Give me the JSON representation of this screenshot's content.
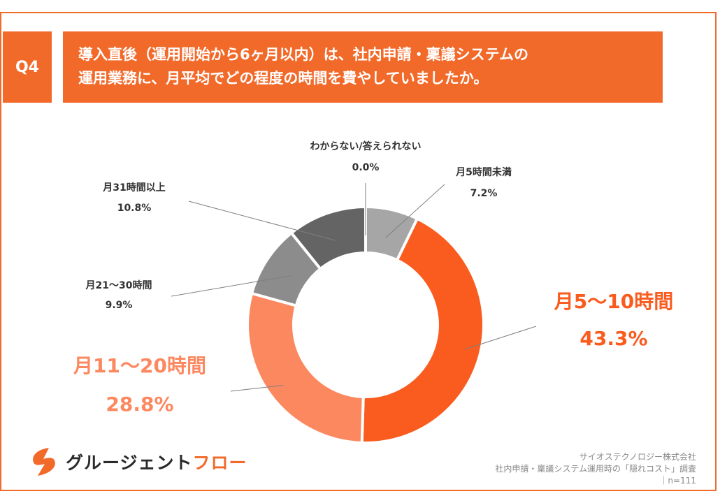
{
  "question": {
    "badge": "Q4",
    "line1": "導入直後（運用開始から6ヶ月以内）は、社内申請・稟議システムの",
    "line2": "運用業務に、月平均でどの程度の時間を費やしていましたか。"
  },
  "colors": {
    "accent": "#f26a2a",
    "frame": "#f26a2a"
  },
  "chart_data": {
    "type": "pie",
    "title": "",
    "donut": true,
    "slices": [
      {
        "label": "月5時間未満",
        "value": 7.2,
        "value_label": "7.2%",
        "color": "#a6a6a6",
        "emphasis": false
      },
      {
        "label": "月5〜10時間",
        "value": 43.3,
        "value_label": "43.3%",
        "color": "#fa5b1e",
        "emphasis": true
      },
      {
        "label": "月11〜20時間",
        "value": 28.8,
        "value_label": "28.8%",
        "color": "#fc8860",
        "emphasis": true
      },
      {
        "label": "月21〜30時間",
        "value": 9.9,
        "value_label": "9.9%",
        "color": "#8c8c8c",
        "emphasis": false
      },
      {
        "label": "月31時間以上",
        "value": 10.8,
        "value_label": "10.8%",
        "color": "#646464",
        "emphasis": false
      },
      {
        "label": "わからない/答えられない",
        "value": 0.0,
        "value_label": "0.0%",
        "color": "#bfbfbf",
        "emphasis": false
      }
    ]
  },
  "logo": {
    "icon": "lightning-swirl-icon",
    "text_main": "グルージェント",
    "text_accent": "フロー"
  },
  "source": {
    "line1": "サイオステクノロジー株式会社",
    "line2": "社内申請・稟議システム運用時の「隠れコスト」調査",
    "line3": "｜n=111"
  }
}
